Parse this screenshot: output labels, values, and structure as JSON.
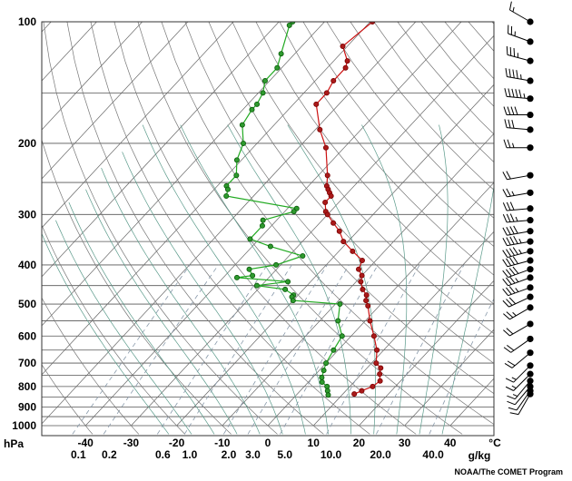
{
  "chart_data": {
    "type": "line",
    "pressure_ticks": [
      100,
      200,
      300,
      400,
      500,
      600,
      700,
      800,
      900,
      1000
    ],
    "pressure_unit": "hPa",
    "temp_ticks": [
      -40,
      -30,
      -20,
      -10,
      0,
      10,
      20,
      30,
      40
    ],
    "temp_unit": "°C",
    "mixing_ratio_ticks": [
      "0.1",
      "0.2",
      "0.6",
      "1.0",
      "2.0",
      "3.0",
      "5.0",
      "10.0",
      "20.0",
      "40.0"
    ],
    "mixing_ratio_unit": "g/kg",
    "series": [
      {
        "key": "temperature",
        "color": "#cc1111",
        "points": [
          [
            100,
            -59.5
          ],
          [
            115,
            -61
          ],
          [
            125,
            -57
          ],
          [
            130,
            -56
          ],
          [
            140,
            -56
          ],
          [
            150,
            -55
          ],
          [
            160,
            -55
          ],
          [
            185,
            -49
          ],
          [
            205,
            -44
          ],
          [
            240,
            -38
          ],
          [
            255,
            -36
          ],
          [
            260,
            -35
          ],
          [
            265,
            -34
          ],
          [
            270,
            -33
          ],
          [
            280,
            -33
          ],
          [
            295,
            -31
          ],
          [
            300,
            -30
          ],
          [
            315,
            -27
          ],
          [
            330,
            -24
          ],
          [
            350,
            -21
          ],
          [
            370,
            -17
          ],
          [
            390,
            -13
          ],
          [
            410,
            -12
          ],
          [
            425,
            -10
          ],
          [
            440,
            -9
          ],
          [
            460,
            -7
          ],
          [
            475,
            -5
          ],
          [
            490,
            -4
          ],
          [
            505,
            -2.5
          ],
          [
            550,
            1
          ],
          [
            600,
            5
          ],
          [
            650,
            8.5
          ],
          [
            700,
            11
          ],
          [
            720,
            13
          ],
          [
            745,
            14
          ],
          [
            775,
            15.5
          ],
          [
            800,
            15
          ],
          [
            820,
            13.5
          ],
          [
            835,
            12.5
          ]
        ]
      },
      {
        "key": "dewpoint",
        "color": "#22aa22",
        "points": [
          [
            100,
            -77
          ],
          [
            102,
            -77
          ],
          [
            120,
            -73
          ],
          [
            130,
            -71
          ],
          [
            140,
            -71
          ],
          [
            150,
            -69
          ],
          [
            160,
            -68
          ],
          [
            165,
            -68
          ],
          [
            180,
            -67
          ],
          [
            200,
            -63
          ],
          [
            220,
            -61
          ],
          [
            240,
            -58
          ],
          [
            255,
            -58
          ],
          [
            260,
            -57
          ],
          [
            270,
            -56
          ],
          [
            290,
            -38
          ],
          [
            295,
            -38
          ],
          [
            310,
            -43
          ],
          [
            320,
            -42
          ],
          [
            345,
            -42
          ],
          [
            360,
            -36
          ],
          [
            380,
            -27
          ],
          [
            400,
            -31
          ],
          [
            410,
            -36
          ],
          [
            425,
            -34
          ],
          [
            430,
            -37
          ],
          [
            440,
            -25
          ],
          [
            450,
            -31
          ],
          [
            460,
            -24
          ],
          [
            475,
            -21
          ],
          [
            480,
            -21
          ],
          [
            490,
            -20
          ],
          [
            500,
            -9
          ],
          [
            550,
            -6
          ],
          [
            600,
            -2
          ],
          [
            650,
            -1
          ],
          [
            700,
            0
          ],
          [
            730,
            1
          ],
          [
            760,
            2
          ],
          [
            780,
            3
          ],
          [
            800,
            5
          ],
          [
            820,
            6
          ],
          [
            840,
            7
          ]
        ]
      }
    ],
    "wind_barbs": [
      {
        "p": 100,
        "dir": 300,
        "spd": 15
      },
      {
        "p": 112,
        "dir": 290,
        "spd": 25
      },
      {
        "p": 125,
        "dir": 285,
        "spd": 35
      },
      {
        "p": 140,
        "dir": 280,
        "spd": 45
      },
      {
        "p": 155,
        "dir": 275,
        "spd": 55
      },
      {
        "p": 170,
        "dir": 270,
        "spd": 40
      },
      {
        "p": 185,
        "dir": 275,
        "spd": 30
      },
      {
        "p": 205,
        "dir": 270,
        "spd": 25
      },
      {
        "p": 240,
        "dir": 260,
        "spd": 20
      },
      {
        "p": 265,
        "dir": 260,
        "spd": 25
      },
      {
        "p": 290,
        "dir": 265,
        "spd": 30
      },
      {
        "p": 310,
        "dir": 265,
        "spd": 35
      },
      {
        "p": 330,
        "dir": 260,
        "spd": 40
      },
      {
        "p": 350,
        "dir": 260,
        "spd": 45
      },
      {
        "p": 370,
        "dir": 255,
        "spd": 45
      },
      {
        "p": 390,
        "dir": 255,
        "spd": 40
      },
      {
        "p": 410,
        "dir": 250,
        "spd": 40
      },
      {
        "p": 430,
        "dir": 250,
        "spd": 35
      },
      {
        "p": 455,
        "dir": 250,
        "spd": 35
      },
      {
        "p": 480,
        "dir": 245,
        "spd": 30
      },
      {
        "p": 510,
        "dir": 240,
        "spd": 25
      },
      {
        "p": 560,
        "dir": 240,
        "spd": 20
      },
      {
        "p": 610,
        "dir": 235,
        "spd": 20
      },
      {
        "p": 660,
        "dir": 230,
        "spd": 20
      },
      {
        "p": 710,
        "dir": 225,
        "spd": 15
      },
      {
        "p": 745,
        "dir": 225,
        "spd": 15
      },
      {
        "p": 775,
        "dir": 220,
        "spd": 15
      },
      {
        "p": 800,
        "dir": 220,
        "spd": 10
      },
      {
        "p": 820,
        "dir": 215,
        "spd": 10
      },
      {
        "p": 835,
        "dir": 210,
        "spd": 10
      }
    ],
    "isobar_color": "#555555",
    "isotherm_color": "#666666",
    "dry_adiabat_color": "#777777",
    "moist_adiabat_color": "#5a9a8a",
    "mixing_ratio_color": "#8899aa"
  },
  "credit": "NOAA/The COMET Program"
}
